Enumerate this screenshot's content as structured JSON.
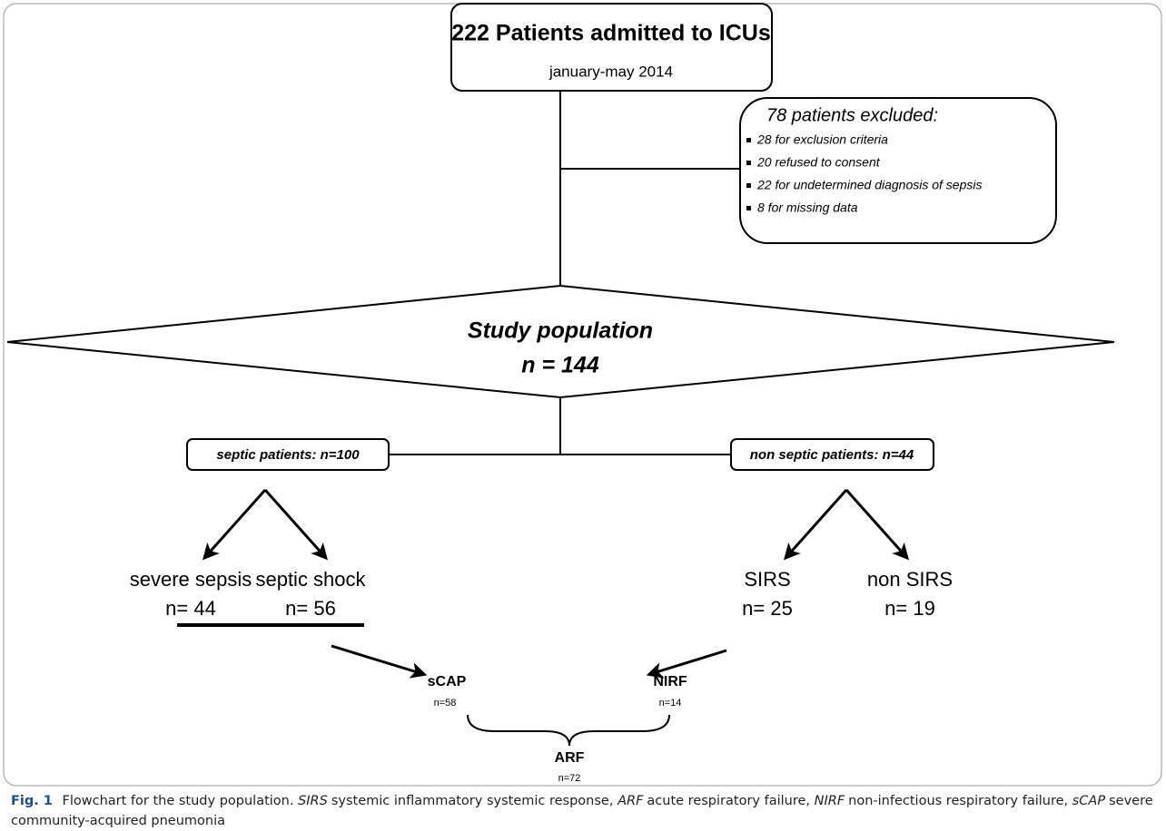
{
  "header": {
    "title": "222 Patients admitted to ICUs",
    "subtitle": "january-may 2014"
  },
  "exclusion": {
    "title": "78 patients excluded:",
    "items": [
      "28 for exclusion criteria",
      "20 refused to consent",
      "22 for undetermined diagnosis of sepsis",
      "8 for missing data"
    ]
  },
  "population": {
    "title": "Study population",
    "count": "n = 144"
  },
  "groups": [
    {
      "label": "septic patients: n=100",
      "subgroups": [
        {
          "label": "severe sepsis",
          "count": "n= 44"
        },
        {
          "label": "septic shock",
          "count": "n= 56"
        }
      ]
    },
    {
      "label": "non septic patients: n=44",
      "subgroups": [
        {
          "label": "SIRS",
          "count": "n= 25"
        },
        {
          "label": "non SIRS",
          "count": "n= 19"
        }
      ]
    }
  ],
  "outcomes": [
    {
      "label": "sCAP",
      "count": "n=58"
    },
    {
      "label": "NIRF",
      "count": "n=14"
    }
  ],
  "total": {
    "label": "ARF",
    "count": "n=72"
  },
  "caption": {
    "label": "Fig. 1",
    "text": "Flowchart for the study population.",
    "terms": [
      {
        "term": "SIRS",
        "definition": "systemic inflammatory systemic response,"
      },
      {
        "term": "ARF",
        "definition": "acute respiratory failure,"
      },
      {
        "term": "NIRF",
        "definition": "non-infectious respiratory failure,"
      },
      {
        "term": "sCAP",
        "definition": "severe community-acquired pneumonia"
      }
    ]
  }
}
